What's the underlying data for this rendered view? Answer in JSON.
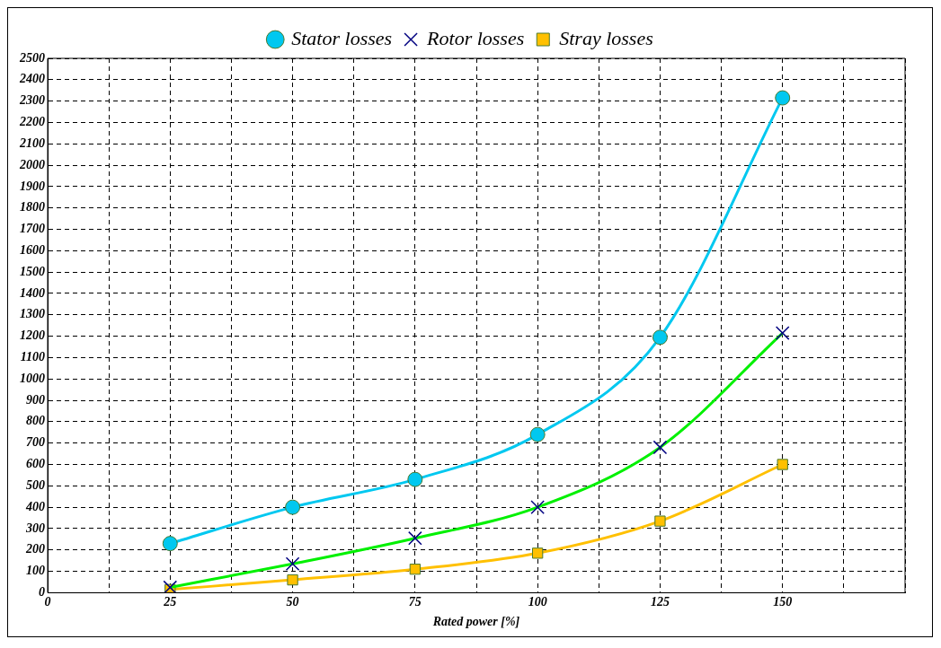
{
  "chart_data": {
    "type": "line",
    "xlabel": "Rated power [%]",
    "x": [
      25,
      50,
      75,
      100,
      125,
      150
    ],
    "series": [
      {
        "name": "Stator losses",
        "color": "#00c8f0",
        "marker": "circle",
        "values": [
          230,
          400,
          530,
          740,
          1195,
          2315
        ]
      },
      {
        "name": "Rotor losses",
        "color": "#00f000",
        "marker": "cross",
        "values": [
          25,
          135,
          255,
          400,
          680,
          1215
        ]
      },
      {
        "name": "Stray losses",
        "color": "#ffc000",
        "marker": "square",
        "values": [
          15,
          60,
          110,
          185,
          335,
          600
        ]
      }
    ],
    "xlim": [
      0,
      175
    ],
    "xticks": [
      0,
      {
        "value": 12.5,
        "label": null
      },
      25,
      {
        "value": 37.5,
        "label": null
      },
      50,
      {
        "value": 62.5,
        "label": null
      },
      75,
      {
        "value": 87.5,
        "label": null
      },
      100,
      {
        "value": 112.5,
        "label": null
      },
      125,
      {
        "value": 137.5,
        "label": null
      },
      150,
      {
        "value": 162.5,
        "label": null
      },
      {
        "value": 175,
        "label": null
      }
    ],
    "ylim": [
      0,
      2500
    ],
    "yticks": [
      0,
      100,
      200,
      300,
      400,
      500,
      600,
      700,
      800,
      900,
      1000,
      1100,
      1200,
      1300,
      1400,
      1500,
      1600,
      1700,
      1800,
      1900,
      2000,
      2100,
      2200,
      2300,
      2400,
      2500
    ],
    "grid": true,
    "legend": "top",
    "line_style": "solid"
  }
}
